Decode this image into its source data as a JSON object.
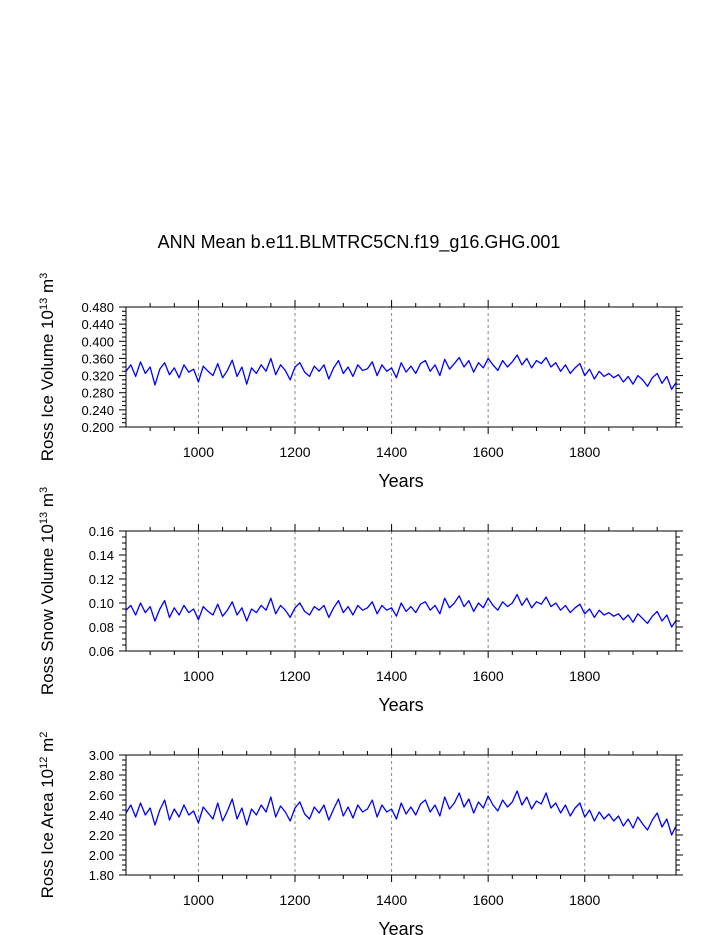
{
  "title": "ANN Mean b.e11.BLMTRC5CN.f19_g16.GHG.001",
  "colors": {
    "series": "#0000ff",
    "axis": "#000000",
    "gridline": "#888888"
  },
  "chart_data": [
    {
      "type": "line",
      "xlabel": "Years",
      "ylabel": {
        "main": "Ross Ice Volume 10",
        "sup1": "13",
        "mid": " m",
        "sup2": "3"
      },
      "xlim": [
        850,
        1989
      ],
      "ylim": [
        0.2,
        0.48
      ],
      "xticks": [
        "1000",
        "1200",
        "1400",
        "1600",
        "1800"
      ],
      "yticks": [
        "0.200",
        "0.240",
        "0.280",
        "0.320",
        "0.360",
        "0.400",
        "0.440",
        "0.480"
      ],
      "ygrid_values": [
        0.2,
        0.24,
        0.28,
        0.32,
        0.36,
        0.4,
        0.44,
        0.48
      ],
      "vertical_reference_lines": [
        1000,
        1200,
        1400,
        1600,
        1800
      ],
      "series": [
        {
          "x_start": 850,
          "x_step": 10,
          "y": [
            0.33,
            0.345,
            0.318,
            0.352,
            0.325,
            0.34,
            0.298,
            0.335,
            0.35,
            0.322,
            0.338,
            0.315,
            0.345,
            0.328,
            0.335,
            0.305,
            0.342,
            0.33,
            0.32,
            0.348,
            0.315,
            0.332,
            0.356,
            0.318,
            0.34,
            0.3,
            0.338,
            0.325,
            0.345,
            0.33,
            0.36,
            0.322,
            0.345,
            0.332,
            0.31,
            0.34,
            0.35,
            0.328,
            0.318,
            0.342,
            0.33,
            0.345,
            0.312,
            0.338,
            0.355,
            0.325,
            0.34,
            0.318,
            0.345,
            0.332,
            0.336,
            0.352,
            0.32,
            0.345,
            0.33,
            0.338,
            0.315,
            0.35,
            0.328,
            0.342,
            0.325,
            0.348,
            0.355,
            0.33,
            0.345,
            0.32,
            0.358,
            0.335,
            0.348,
            0.362,
            0.34,
            0.355,
            0.328,
            0.35,
            0.338,
            0.36,
            0.345,
            0.332,
            0.355,
            0.34,
            0.352,
            0.368,
            0.345,
            0.36,
            0.338,
            0.355,
            0.348,
            0.362,
            0.34,
            0.35,
            0.33,
            0.345,
            0.325,
            0.338,
            0.348,
            0.32,
            0.335,
            0.312,
            0.33,
            0.318,
            0.325,
            0.315,
            0.322,
            0.305,
            0.318,
            0.3,
            0.32,
            0.31,
            0.295,
            0.315,
            0.325,
            0.302,
            0.318,
            0.288,
            0.305
          ]
        }
      ]
    },
    {
      "type": "line",
      "xlabel": "Years",
      "ylabel": {
        "main": "Ross Snow Volume 10",
        "sup1": "13",
        "mid": " m",
        "sup2": "3"
      },
      "xlim": [
        850,
        1989
      ],
      "ylim": [
        0.06,
        0.16
      ],
      "xticks": [
        "1000",
        "1200",
        "1400",
        "1600",
        "1800"
      ],
      "yticks": [
        "0.06",
        "0.08",
        "0.10",
        "0.12",
        "0.14",
        "0.16"
      ],
      "ygrid_values": [
        0.06,
        0.08,
        0.1,
        0.12,
        0.14,
        0.16
      ],
      "vertical_reference_lines": [
        1000,
        1200,
        1400,
        1600,
        1800
      ],
      "series": [
        {
          "x_start": 850,
          "x_step": 10,
          "y": [
            0.094,
            0.098,
            0.09,
            0.1,
            0.092,
            0.097,
            0.085,
            0.095,
            0.102,
            0.088,
            0.096,
            0.09,
            0.098,
            0.092,
            0.095,
            0.086,
            0.097,
            0.093,
            0.09,
            0.099,
            0.089,
            0.094,
            0.101,
            0.09,
            0.096,
            0.085,
            0.095,
            0.092,
            0.098,
            0.094,
            0.104,
            0.091,
            0.098,
            0.094,
            0.088,
            0.096,
            0.1,
            0.093,
            0.09,
            0.097,
            0.094,
            0.098,
            0.088,
            0.096,
            0.102,
            0.092,
            0.097,
            0.09,
            0.098,
            0.094,
            0.096,
            0.101,
            0.091,
            0.098,
            0.094,
            0.096,
            0.089,
            0.1,
            0.093,
            0.097,
            0.092,
            0.099,
            0.101,
            0.094,
            0.098,
            0.091,
            0.104,
            0.096,
            0.1,
            0.106,
            0.097,
            0.102,
            0.093,
            0.1,
            0.096,
            0.104,
            0.098,
            0.094,
            0.101,
            0.097,
            0.1,
            0.107,
            0.098,
            0.104,
            0.096,
            0.101,
            0.099,
            0.105,
            0.097,
            0.1,
            0.094,
            0.098,
            0.092,
            0.096,
            0.099,
            0.091,
            0.095,
            0.088,
            0.094,
            0.09,
            0.092,
            0.089,
            0.091,
            0.086,
            0.09,
            0.084,
            0.091,
            0.087,
            0.083,
            0.089,
            0.093,
            0.085,
            0.09,
            0.08,
            0.086
          ]
        }
      ]
    },
    {
      "type": "line",
      "xlabel": "Years",
      "ylabel": {
        "main": "Ross Ice Area 10",
        "sup1": "12",
        "mid": " m",
        "sup2": "2"
      },
      "xlim": [
        850,
        1989
      ],
      "ylim": [
        1.8,
        3.0
      ],
      "xticks": [
        "1000",
        "1200",
        "1400",
        "1600",
        "1800"
      ],
      "yticks": [
        "1.80",
        "2.00",
        "2.20",
        "2.40",
        "2.60",
        "2.80",
        "3.00"
      ],
      "ygrid_values": [
        1.8,
        2.0,
        2.2,
        2.4,
        2.6,
        2.8,
        3.0
      ],
      "vertical_reference_lines": [
        1000,
        1200,
        1400,
        1600,
        1800
      ],
      "series": [
        {
          "x_start": 850,
          "x_step": 10,
          "y": [
            2.42,
            2.5,
            2.38,
            2.52,
            2.4,
            2.47,
            2.3,
            2.45,
            2.55,
            2.35,
            2.46,
            2.38,
            2.5,
            2.4,
            2.44,
            2.32,
            2.48,
            2.42,
            2.36,
            2.52,
            2.34,
            2.44,
            2.56,
            2.36,
            2.47,
            2.3,
            2.46,
            2.4,
            2.5,
            2.43,
            2.58,
            2.38,
            2.49,
            2.43,
            2.34,
            2.47,
            2.53,
            2.41,
            2.36,
            2.48,
            2.42,
            2.5,
            2.35,
            2.46,
            2.56,
            2.39,
            2.48,
            2.37,
            2.5,
            2.43,
            2.46,
            2.55,
            2.38,
            2.5,
            2.43,
            2.46,
            2.36,
            2.52,
            2.41,
            2.48,
            2.4,
            2.51,
            2.55,
            2.43,
            2.5,
            2.39,
            2.58,
            2.46,
            2.52,
            2.62,
            2.48,
            2.56,
            2.42,
            2.53,
            2.47,
            2.59,
            2.5,
            2.44,
            2.55,
            2.48,
            2.53,
            2.64,
            2.5,
            2.58,
            2.46,
            2.54,
            2.51,
            2.62,
            2.47,
            2.52,
            2.42,
            2.5,
            2.39,
            2.47,
            2.52,
            2.38,
            2.45,
            2.34,
            2.43,
            2.36,
            2.41,
            2.34,
            2.39,
            2.29,
            2.36,
            2.27,
            2.38,
            2.31,
            2.25,
            2.35,
            2.42,
            2.28,
            2.36,
            2.2,
            2.3
          ]
        }
      ]
    }
  ]
}
